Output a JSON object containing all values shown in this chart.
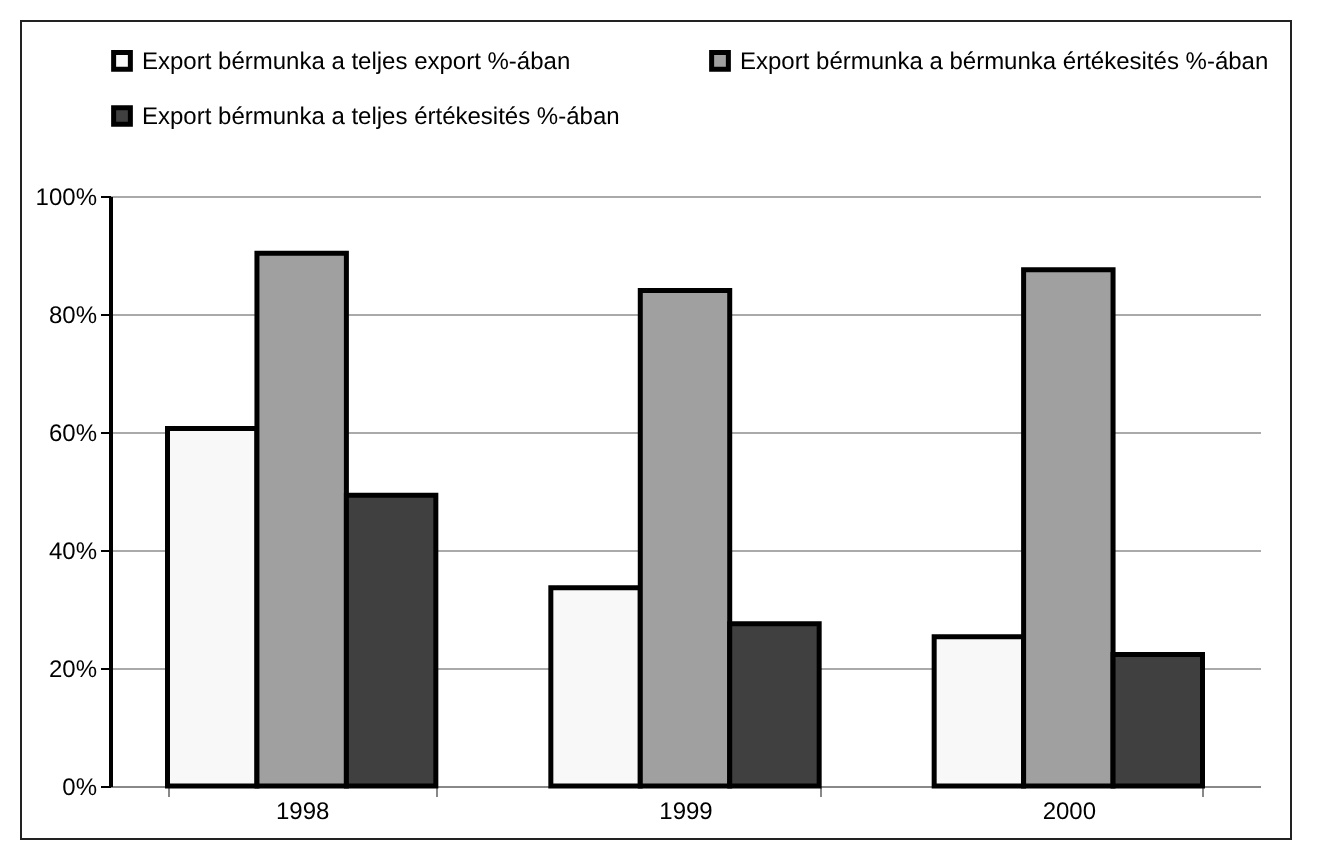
{
  "chart_data": {
    "type": "bar",
    "categories": [
      "1998",
      "1999",
      "2000"
    ],
    "series": [
      {
        "name": "Export bérmunka a teljes export %-ában",
        "color": "#f8f8f8",
        "values": [
          60.6,
          33.6,
          25.3
        ]
      },
      {
        "name": "Export bérmunka a bérmunka értékesités %-ában",
        "color": "#a0a0a0",
        "values": [
          90.3,
          84,
          87.5
        ]
      },
      {
        "name": "Export bérmunka a teljes értékesités %-ában",
        "color": "#404040",
        "values": [
          49.3,
          27.5,
          22.3
        ]
      }
    ],
    "ylim": [
      0,
      100
    ],
    "yticks": [
      {
        "value": 0,
        "label": "0%"
      },
      {
        "value": 20,
        "label": "20%"
      },
      {
        "value": 40,
        "label": "40%"
      },
      {
        "value": 60,
        "label": "60%"
      },
      {
        "value": 80,
        "label": "80%"
      },
      {
        "value": 100,
        "label": "100%"
      }
    ],
    "grid": "y",
    "legend": "top"
  }
}
